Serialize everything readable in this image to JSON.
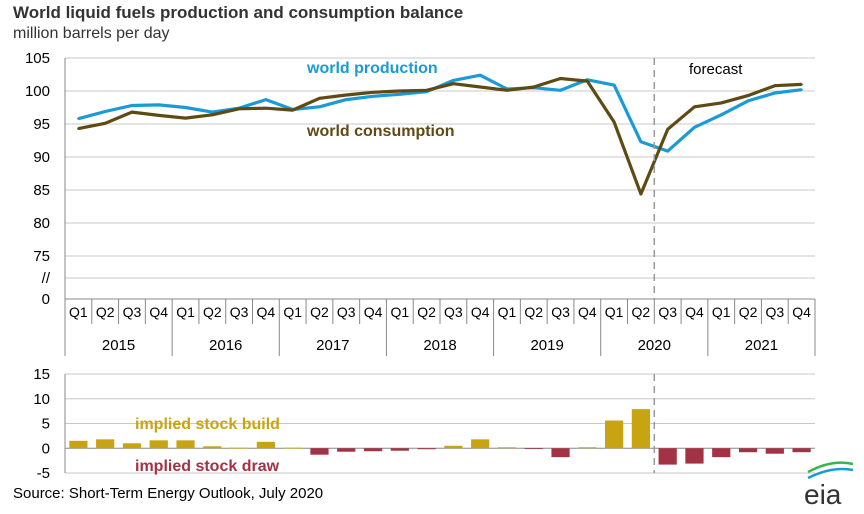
{
  "header": {
    "title": "World liquid fuels production and consumption balance",
    "subtitle": "million barrels per day"
  },
  "source": "Source: Short-Term Energy Outlook, July 2020",
  "logo": "eia",
  "colors": {
    "production": "#1a9ad6",
    "consumption": "#5e4a12",
    "build": "#c8a413",
    "draw": "#a33244",
    "grid": "#c8c8c8",
    "forecast_line": "#999999"
  },
  "chart_data": [
    {
      "type": "line",
      "title": "World liquid fuels production and consumption balance",
      "ylabel": "million barrels per day",
      "ylim": [
        75,
        105
      ],
      "yticks": [
        "105",
        "100",
        "95",
        "90",
        "85",
        "80",
        "75",
        "//",
        "0"
      ],
      "grid": true,
      "quarters": [
        "Q1",
        "Q2",
        "Q3",
        "Q4",
        "Q1",
        "Q2",
        "Q3",
        "Q4",
        "Q1",
        "Q2",
        "Q3",
        "Q4",
        "Q1",
        "Q2",
        "Q3",
        "Q4",
        "Q1",
        "Q2",
        "Q3",
        "Q4",
        "Q1",
        "Q2",
        "Q3",
        "Q4",
        "Q1",
        "Q2",
        "Q3",
        "Q4"
      ],
      "years": [
        "2015",
        "2016",
        "2017",
        "2018",
        "2019",
        "2020",
        "2021"
      ],
      "forecast_label": "forecast",
      "series": [
        {
          "name": "world production",
          "values": [
            95.8,
            96.9,
            97.8,
            97.9,
            97.5,
            96.8,
            97.4,
            98.7,
            97.2,
            97.6,
            98.7,
            99.2,
            99.5,
            99.9,
            101.6,
            102.4,
            100.3,
            100.5,
            100.1,
            101.7,
            100.9,
            92.3,
            90.9,
            94.5,
            96.4,
            98.5,
            99.7,
            100.2
          ]
        },
        {
          "name": "world consumption",
          "values": [
            94.3,
            95.1,
            96.8,
            96.3,
            95.9,
            96.4,
            97.3,
            97.4,
            97.1,
            98.9,
            99.4,
            99.8,
            100.0,
            100.1,
            101.1,
            100.6,
            100.1,
            100.6,
            101.9,
            101.5,
            95.3,
            84.4,
            94.2,
            97.6,
            98.2,
            99.3,
            100.8,
            101.0
          ]
        }
      ]
    },
    {
      "type": "bar",
      "ylim": [
        -5,
        15
      ],
      "yticks": [
        "15",
        "10",
        "5",
        "0",
        "-5"
      ],
      "grid": true,
      "labels": {
        "build": "implied stock  build",
        "draw": "implied stock draw"
      },
      "values": [
        1.5,
        1.8,
        1.0,
        1.6,
        1.6,
        0.4,
        0.1,
        1.3,
        0.1,
        -1.3,
        -0.7,
        -0.6,
        -0.5,
        -0.2,
        0.5,
        1.8,
        0.2,
        -0.1,
        -1.8,
        0.2,
        5.6,
        7.9,
        -3.3,
        -3.1,
        -1.8,
        -0.8,
        -1.1,
        -0.8
      ]
    }
  ]
}
